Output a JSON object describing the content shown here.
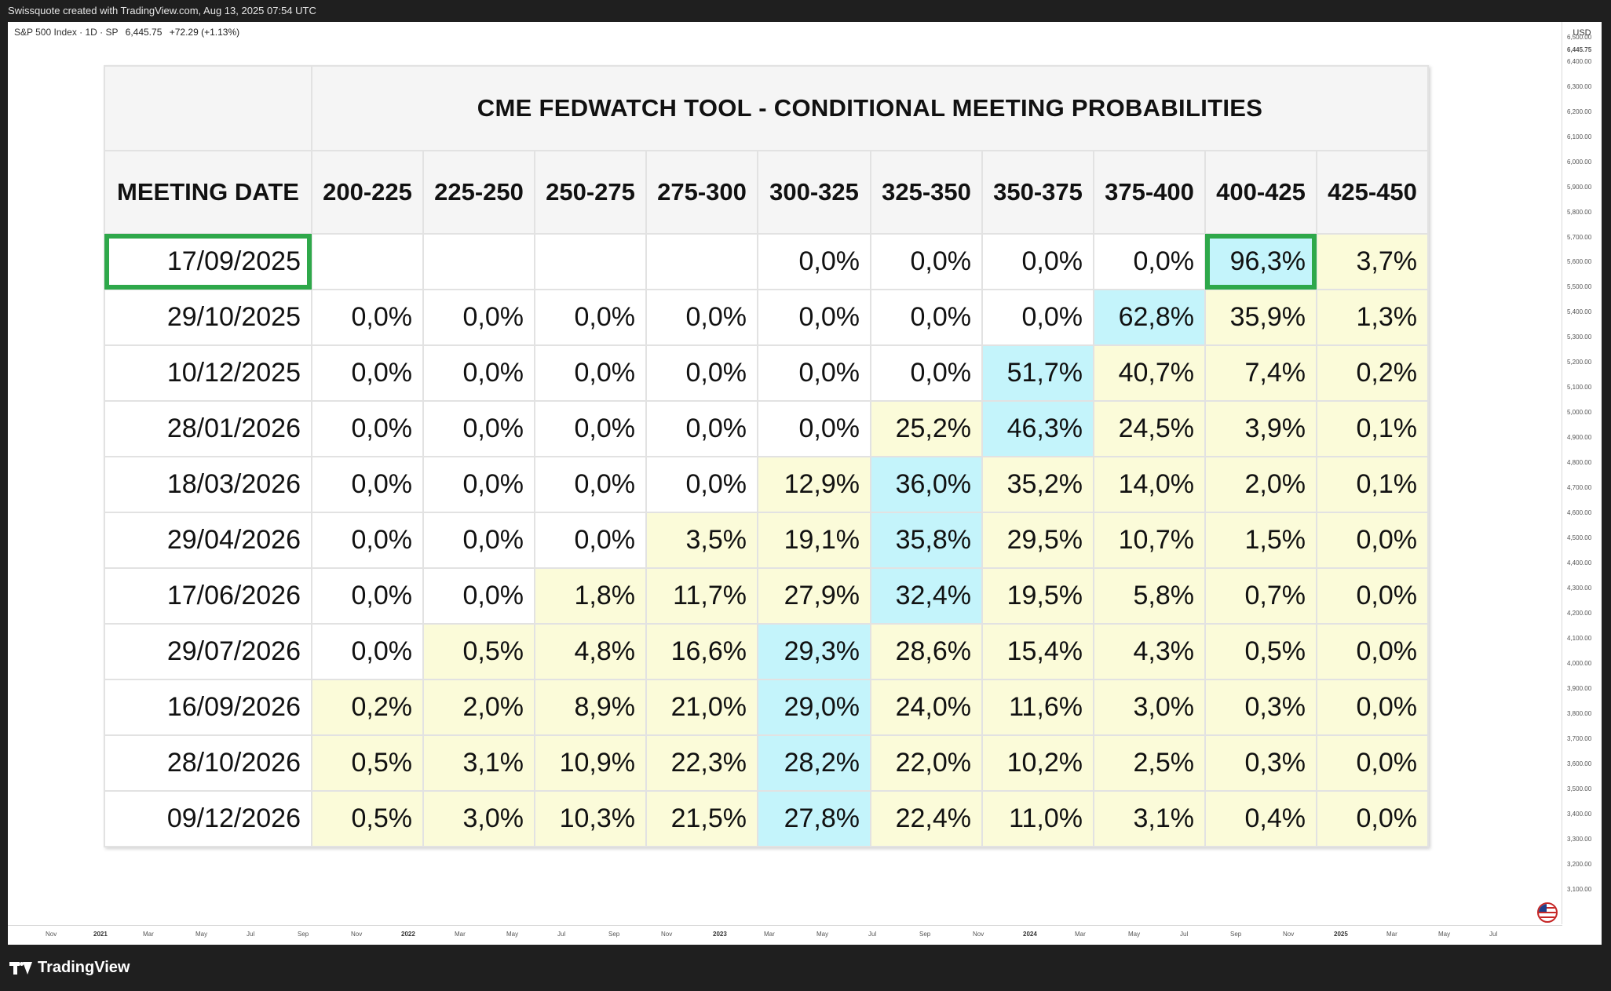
{
  "header": {
    "attribution": "Swissquote created with TradingView.com, Aug 13, 2025 07:54 UTC"
  },
  "legend": {
    "symbol": "S&P 500 Index · 1D · SP",
    "price": "6,445.75",
    "change": "+72.29 (+1.13%)"
  },
  "price_axis": {
    "currency": "USD",
    "ticks": [
      "6,500.00",
      "6,445.75",
      "6,400.00",
      "6,300.00",
      "6,200.00",
      "6,100.00",
      "6,000.00",
      "5,900.00",
      "5,800.00",
      "5,700.00",
      "5,600.00",
      "5,500.00",
      "5,400.00",
      "5,300.00",
      "5,200.00",
      "5,100.00",
      "5,000.00",
      "4,900.00",
      "4,800.00",
      "4,700.00",
      "4,600.00",
      "4,500.00",
      "4,400.00",
      "4,300.00",
      "4,200.00",
      "4,100.00",
      "4,000.00",
      "3,900.00",
      "3,800.00",
      "3,700.00",
      "3,600.00",
      "3,500.00",
      "3,400.00",
      "3,300.00",
      "3,200.00",
      "3,100.00"
    ]
  },
  "time_axis": {
    "ticks": [
      {
        "label": "Nov",
        "year": false
      },
      {
        "label": "2021",
        "year": true
      },
      {
        "label": "Mar",
        "year": false
      },
      {
        "label": "May",
        "year": false
      },
      {
        "label": "Jul",
        "year": false
      },
      {
        "label": "Sep",
        "year": false
      },
      {
        "label": "Nov",
        "year": false
      },
      {
        "label": "2022",
        "year": true
      },
      {
        "label": "Mar",
        "year": false
      },
      {
        "label": "May",
        "year": false
      },
      {
        "label": "Jul",
        "year": false
      },
      {
        "label": "Sep",
        "year": false
      },
      {
        "label": "Nov",
        "year": false
      },
      {
        "label": "2023",
        "year": true
      },
      {
        "label": "Mar",
        "year": false
      },
      {
        "label": "May",
        "year": false
      },
      {
        "label": "Jul",
        "year": false
      },
      {
        "label": "Sep",
        "year": false
      },
      {
        "label": "Nov",
        "year": false
      },
      {
        "label": "2024",
        "year": true
      },
      {
        "label": "Mar",
        "year": false
      },
      {
        "label": "May",
        "year": false
      },
      {
        "label": "Jul",
        "year": false
      },
      {
        "label": "Sep",
        "year": false
      },
      {
        "label": "Nov",
        "year": false
      },
      {
        "label": "2025",
        "year": true
      },
      {
        "label": "Mar",
        "year": false
      },
      {
        "label": "May",
        "year": false
      },
      {
        "label": "Jul",
        "year": false
      }
    ]
  },
  "footer": {
    "brand": "TradingView"
  },
  "fedwatch": {
    "title": "CME FEDWATCH TOOL - CONDITIONAL MEETING PROBABILITIES",
    "date_header": "MEETING DATE",
    "ranges": [
      "200-225",
      "225-250",
      "250-275",
      "275-300",
      "300-325",
      "325-350",
      "350-375",
      "375-400",
      "400-425",
      "425-450"
    ],
    "colors": {
      "highest": "#c4f4fb",
      "other": "#fbfbd9",
      "highlight_box": "#2ea84a"
    },
    "rows": [
      {
        "date": "17/09/2025",
        "boxed_date": true,
        "boxed_col": 8,
        "cells": [
          "",
          "",
          "",
          "",
          "0,0%",
          "0,0%",
          "0,0%",
          "0,0%",
          "96,3%",
          "3,7%"
        ],
        "colors": [
          "",
          "",
          "",
          "",
          "",
          "",
          "",
          "",
          "blue",
          "yellow"
        ]
      },
      {
        "date": "29/10/2025",
        "cells": [
          "0,0%",
          "0,0%",
          "0,0%",
          "0,0%",
          "0,0%",
          "0,0%",
          "0,0%",
          "62,8%",
          "35,9%",
          "1,3%"
        ],
        "colors": [
          "",
          "",
          "",
          "",
          "",
          "",
          "",
          "blue",
          "yellow",
          "yellow"
        ]
      },
      {
        "date": "10/12/2025",
        "cells": [
          "0,0%",
          "0,0%",
          "0,0%",
          "0,0%",
          "0,0%",
          "0,0%",
          "51,7%",
          "40,7%",
          "7,4%",
          "0,2%"
        ],
        "colors": [
          "",
          "",
          "",
          "",
          "",
          "",
          "blue",
          "yellow",
          "yellow",
          "yellow"
        ]
      },
      {
        "date": "28/01/2026",
        "cells": [
          "0,0%",
          "0,0%",
          "0,0%",
          "0,0%",
          "0,0%",
          "25,2%",
          "46,3%",
          "24,5%",
          "3,9%",
          "0,1%"
        ],
        "colors": [
          "",
          "",
          "",
          "",
          "",
          "yellow",
          "blue",
          "yellow",
          "yellow",
          "yellow"
        ]
      },
      {
        "date": "18/03/2026",
        "cells": [
          "0,0%",
          "0,0%",
          "0,0%",
          "0,0%",
          "12,9%",
          "36,0%",
          "35,2%",
          "14,0%",
          "2,0%",
          "0,1%"
        ],
        "colors": [
          "",
          "",
          "",
          "",
          "yellow",
          "blue",
          "yellow",
          "yellow",
          "yellow",
          "yellow"
        ]
      },
      {
        "date": "29/04/2026",
        "cells": [
          "0,0%",
          "0,0%",
          "0,0%",
          "3,5%",
          "19,1%",
          "35,8%",
          "29,5%",
          "10,7%",
          "1,5%",
          "0,0%"
        ],
        "colors": [
          "",
          "",
          "",
          "yellow",
          "yellow",
          "blue",
          "yellow",
          "yellow",
          "yellow",
          "yellow"
        ]
      },
      {
        "date": "17/06/2026",
        "cells": [
          "0,0%",
          "0,0%",
          "1,8%",
          "11,7%",
          "27,9%",
          "32,4%",
          "19,5%",
          "5,8%",
          "0,7%",
          "0,0%"
        ],
        "colors": [
          "",
          "",
          "yellow",
          "yellow",
          "yellow",
          "blue",
          "yellow",
          "yellow",
          "yellow",
          "yellow"
        ]
      },
      {
        "date": "29/07/2026",
        "cells": [
          "0,0%",
          "0,5%",
          "4,8%",
          "16,6%",
          "29,3%",
          "28,6%",
          "15,4%",
          "4,3%",
          "0,5%",
          "0,0%"
        ],
        "colors": [
          "",
          "yellow",
          "yellow",
          "yellow",
          "blue",
          "yellow",
          "yellow",
          "yellow",
          "yellow",
          "yellow"
        ]
      },
      {
        "date": "16/09/2026",
        "cells": [
          "0,2%",
          "2,0%",
          "8,9%",
          "21,0%",
          "29,0%",
          "24,0%",
          "11,6%",
          "3,0%",
          "0,3%",
          "0,0%"
        ],
        "colors": [
          "yellow",
          "yellow",
          "yellow",
          "yellow",
          "blue",
          "yellow",
          "yellow",
          "yellow",
          "yellow",
          "yellow"
        ]
      },
      {
        "date": "28/10/2026",
        "cells": [
          "0,5%",
          "3,1%",
          "10,9%",
          "22,3%",
          "28,2%",
          "22,0%",
          "10,2%",
          "2,5%",
          "0,3%",
          "0,0%"
        ],
        "colors": [
          "yellow",
          "yellow",
          "yellow",
          "yellow",
          "blue",
          "yellow",
          "yellow",
          "yellow",
          "yellow",
          "yellow"
        ]
      },
      {
        "date": "09/12/2026",
        "cells": [
          "0,5%",
          "3,0%",
          "10,3%",
          "21,5%",
          "27,8%",
          "22,4%",
          "11,0%",
          "3,1%",
          "0,4%",
          "0,0%"
        ],
        "colors": [
          "yellow",
          "yellow",
          "yellow",
          "yellow",
          "blue",
          "yellow",
          "yellow",
          "yellow",
          "yellow",
          "yellow"
        ]
      }
    ]
  }
}
